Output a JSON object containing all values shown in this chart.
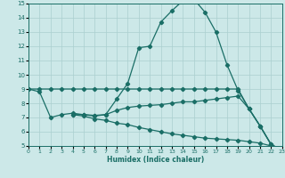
{
  "xlabel": "Humidex (Indice chaleur)",
  "xlim": [
    0,
    23
  ],
  "ylim": [
    5,
    15
  ],
  "yticks": [
    5,
    6,
    7,
    8,
    9,
    10,
    11,
    12,
    13,
    14,
    15
  ],
  "xticks": [
    0,
    1,
    2,
    3,
    4,
    5,
    6,
    7,
    8,
    9,
    10,
    11,
    12,
    13,
    14,
    15,
    16,
    17,
    18,
    19,
    20,
    21,
    22,
    23
  ],
  "bg_color": "#cce8e8",
  "grid_color": "#aacfcf",
  "line_color": "#1a6e66",
  "line1_x": [
    0,
    1,
    2,
    3,
    4,
    5,
    6,
    7,
    8,
    9,
    10,
    11,
    12,
    13,
    14,
    15,
    16,
    17,
    18,
    19,
    20,
    21,
    22,
    23
  ],
  "line1_y": [
    9.0,
    8.8,
    7.0,
    7.2,
    7.3,
    7.2,
    7.1,
    7.2,
    8.3,
    9.4,
    11.9,
    12.0,
    13.7,
    14.5,
    15.2,
    15.3,
    14.4,
    13.0,
    10.7,
    8.9,
    7.6,
    6.4,
    5.1,
    4.7
  ],
  "line2_x": [
    0,
    1,
    2,
    3,
    4,
    5,
    6,
    7,
    8,
    9,
    10,
    11,
    12,
    13,
    14,
    15,
    16,
    17,
    18,
    19,
    20,
    21,
    22,
    23
  ],
  "line2_y": [
    9.0,
    9.0,
    9.0,
    9.0,
    9.0,
    9.0,
    9.0,
    9.0,
    9.0,
    9.0,
    9.0,
    9.0,
    9.0,
    9.0,
    9.0,
    9.0,
    9.0,
    9.0,
    9.0,
    9.0,
    7.6,
    6.4,
    5.1,
    4.7
  ],
  "line3_x": [
    4,
    5,
    6,
    7,
    8,
    9,
    10,
    11,
    12,
    13,
    14,
    15,
    16,
    17,
    18,
    19,
    20,
    21,
    22,
    23
  ],
  "line3_y": [
    7.2,
    7.2,
    7.15,
    7.2,
    7.5,
    7.7,
    7.8,
    7.85,
    7.9,
    8.0,
    8.1,
    8.1,
    8.2,
    8.3,
    8.4,
    8.5,
    7.6,
    6.4,
    5.1,
    4.7
  ],
  "line4_x": [
    4,
    5,
    6,
    7,
    8,
    9,
    10,
    11,
    12,
    13,
    14,
    15,
    16,
    17,
    18,
    19,
    20,
    21,
    22,
    23
  ],
  "line4_y": [
    7.2,
    7.1,
    6.9,
    6.8,
    6.6,
    6.5,
    6.3,
    6.15,
    6.0,
    5.85,
    5.75,
    5.65,
    5.55,
    5.5,
    5.45,
    5.4,
    5.3,
    5.2,
    5.0,
    4.7
  ]
}
